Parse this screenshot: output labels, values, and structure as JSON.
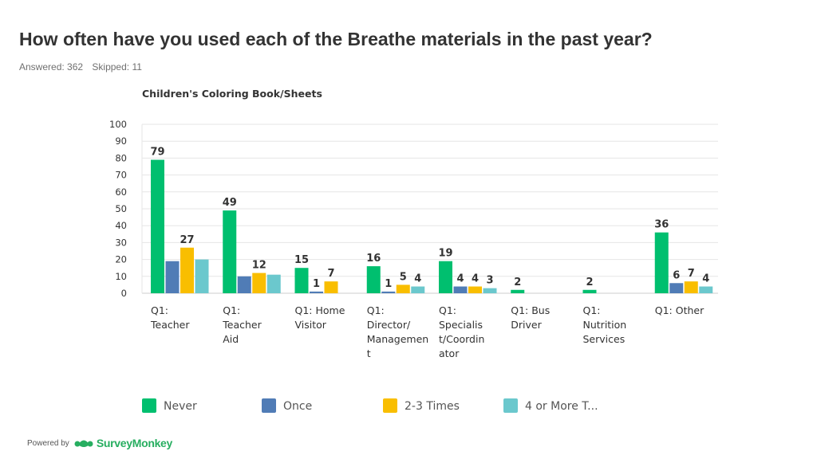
{
  "page": {
    "title": "How often have you used each of the Breathe materials in the past year?",
    "answered": "Answered: 362",
    "skipped": "Skipped: 11"
  },
  "footer": {
    "powered_by": "Powered by",
    "brand": "SurveyMonkey",
    "logo_icon": "surveymonkey-logo-icon",
    "brand_color": "#27ae60"
  },
  "chart_data": {
    "type": "bar",
    "title": "Children's Coloring Book/Sheets",
    "xlabel": "",
    "ylabel": "",
    "ylim": [
      0,
      100
    ],
    "yticks": [
      0,
      10,
      20,
      30,
      40,
      50,
      60,
      70,
      80,
      90,
      100
    ],
    "grid": true,
    "legend_position": "bottom",
    "categories": [
      [
        "Q1:",
        "Teacher"
      ],
      [
        "Q1:",
        "Teacher",
        "Aid"
      ],
      [
        "Q1: Home",
        "Visitor"
      ],
      [
        "Q1:",
        "Director/",
        "Managemen",
        "t"
      ],
      [
        "Q1:",
        "Specialis",
        "t/Coordin",
        "ator"
      ],
      [
        "Q1: Bus",
        "Driver"
      ],
      [
        "Q1:",
        "Nutrition",
        "Services"
      ],
      [
        "Q1: Other"
      ]
    ],
    "series": [
      {
        "name": "Never",
        "color": "#00bf6f",
        "values": [
          79,
          49,
          15,
          16,
          19,
          2,
          2,
          36
        ],
        "labels": [
          "79",
          "49",
          "15",
          "16",
          "19",
          "2",
          "2",
          "36"
        ]
      },
      {
        "name": "Once",
        "color": "#507cb6",
        "values": [
          19,
          10,
          1,
          1,
          4,
          0,
          0,
          6
        ],
        "labels": [
          "",
          "",
          "1",
          "1",
          "4",
          "",
          "",
          "6"
        ]
      },
      {
        "name": "2-3 Times",
        "color": "#f9be00",
        "values": [
          27,
          12,
          7,
          5,
          4,
          0,
          0,
          7
        ],
        "labels": [
          "27",
          "12",
          "7",
          "5",
          "4",
          "",
          "",
          "7"
        ]
      },
      {
        "name": "4 or More T...",
        "color": "#6bc8cd",
        "values": [
          20,
          11,
          0,
          4,
          3,
          0,
          0,
          4
        ],
        "labels": [
          "",
          "",
          "",
          "4",
          "3",
          "",
          "",
          "4"
        ]
      }
    ]
  }
}
